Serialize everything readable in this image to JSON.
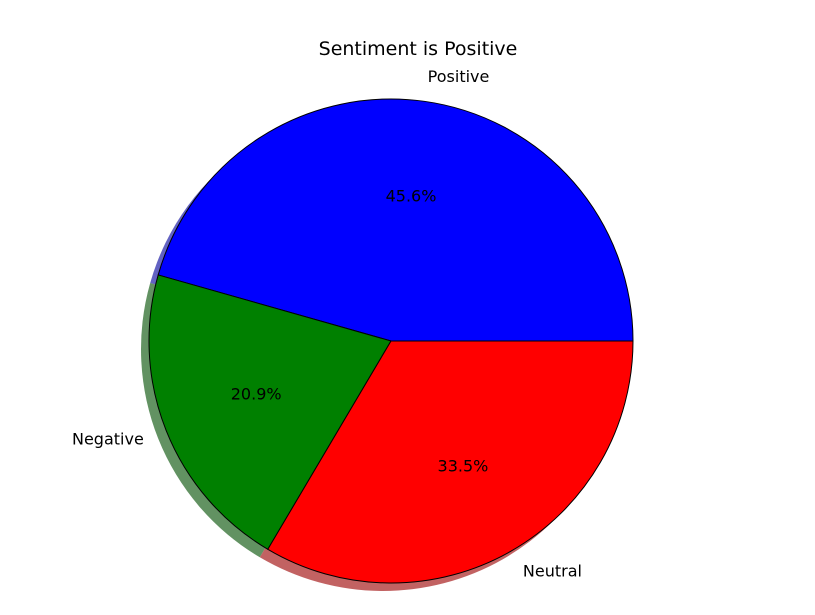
{
  "chart_data": {
    "type": "pie",
    "title": "Sentiment is Positive",
    "slices": [
      {
        "label": "Positive",
        "value": 45.6,
        "pct_text": "45.6%",
        "color": "#0000ff"
      },
      {
        "label": "Negative",
        "value": 20.9,
        "pct_text": "20.9%",
        "color": "#008000"
      },
      {
        "label": "Neutral",
        "value": 33.5,
        "pct_text": "33.5%",
        "color": "#ff0000"
      }
    ],
    "start_angle_deg": 0,
    "direction": "counterclockwise",
    "shadow": true,
    "edge_color": "#000000"
  }
}
